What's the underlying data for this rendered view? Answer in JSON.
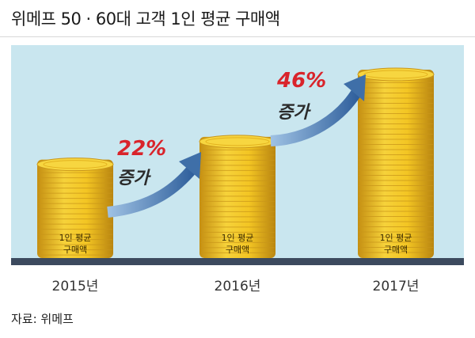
{
  "title": "위메프 50 · 60대 고객 1인 평균 구매액",
  "source": "자료: 위메프",
  "chart_data": {
    "type": "bar",
    "categories": [
      "2015년",
      "2016년",
      "2017년"
    ],
    "stack_label_line1": "1인 평균",
    "stack_label_line2": "구매액",
    "increases": [
      {
        "from": "2015년",
        "to": "2016년",
        "percent": "22%",
        "label": "증가"
      },
      {
        "from": "2016년",
        "to": "2017년",
        "percent": "46%",
        "label": "증가"
      }
    ],
    "relative_values": [
      100,
      122,
      178
    ],
    "colors": {
      "background": "#c9e6ef",
      "baseline": "#3c4a5e",
      "coin": "#f1c21b",
      "coin_edge": "#c9961a",
      "arrow": "#3f6fa8",
      "percent": "#d9242b"
    }
  }
}
